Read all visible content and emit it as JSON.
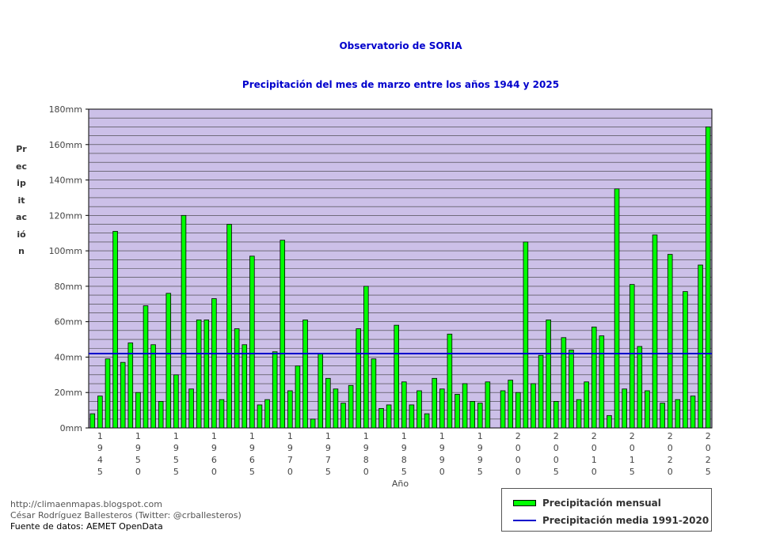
{
  "chart_data": {
    "type": "bar",
    "title": "Observatorio de SORIA",
    "subtitle": "Precipitación del mes de marzo entre los años 1944 y 2025",
    "xlabel": "Año",
    "ylabel": "Precipitación",
    "ylim": [
      0,
      180
    ],
    "y_ticks": [
      "0mm",
      "20mm",
      "40mm",
      "60mm",
      "80mm",
      "100mm",
      "120mm",
      "140mm",
      "160mm",
      "180mm"
    ],
    "x_tick_labels": [
      "1945",
      "1950",
      "1955",
      "1960",
      "1965",
      "1970",
      "1975",
      "1980",
      "1985",
      "1990",
      "1995",
      "2000",
      "2005",
      "2010",
      "2015",
      "2020",
      "2025"
    ],
    "grid": true,
    "legend_position": "bottom-right",
    "colors": {
      "bar": "#00ff00",
      "mean_line": "#0000cc",
      "plot_bg": "#ccc0e8"
    },
    "categories": [
      1944,
      1945,
      1946,
      1947,
      1948,
      1949,
      1950,
      1951,
      1952,
      1953,
      1954,
      1955,
      1956,
      1957,
      1958,
      1959,
      1960,
      1961,
      1962,
      1963,
      1964,
      1965,
      1966,
      1967,
      1968,
      1969,
      1970,
      1971,
      1972,
      1973,
      1974,
      1975,
      1976,
      1977,
      1978,
      1979,
      1980,
      1981,
      1982,
      1983,
      1984,
      1985,
      1986,
      1987,
      1988,
      1989,
      1990,
      1991,
      1992,
      1993,
      1994,
      1995,
      1996,
      1997,
      1998,
      1999,
      2000,
      2001,
      2002,
      2003,
      2004,
      2005,
      2006,
      2007,
      2008,
      2009,
      2010,
      2011,
      2012,
      2013,
      2014,
      2015,
      2016,
      2017,
      2018,
      2019,
      2020,
      2021,
      2022,
      2023,
      2024,
      2025
    ],
    "series": [
      {
        "name": "Precipitación mensual",
        "values": [
          8,
          18,
          39,
          111,
          37,
          48,
          20,
          69,
          47,
          15,
          76,
          30,
          120,
          22,
          61,
          61,
          73,
          16,
          115,
          56,
          47,
          97,
          13,
          16,
          43,
          106,
          21,
          35,
          61,
          5,
          42,
          28,
          22,
          14,
          24,
          56,
          80,
          39,
          11,
          13,
          58,
          26,
          13,
          21,
          8,
          28,
          22,
          53,
          19,
          25,
          15,
          14,
          26,
          0,
          21,
          27,
          20,
          105,
          25,
          41,
          61,
          15,
          51,
          44,
          16,
          26,
          57,
          52,
          7,
          135,
          22,
          81,
          46,
          21,
          109,
          14,
          98,
          16,
          77,
          18,
          92,
          170
        ]
      },
      {
        "name": "Precipitación media 1991-2020",
        "value": 42
      }
    ]
  },
  "credits": {
    "line1": "http://climaenmapas.blogspot.com",
    "line2": "César Rodríguez Ballesteros (Twitter: @crballesteros)",
    "line3": "Fuente de datos: AEMET OpenData"
  }
}
